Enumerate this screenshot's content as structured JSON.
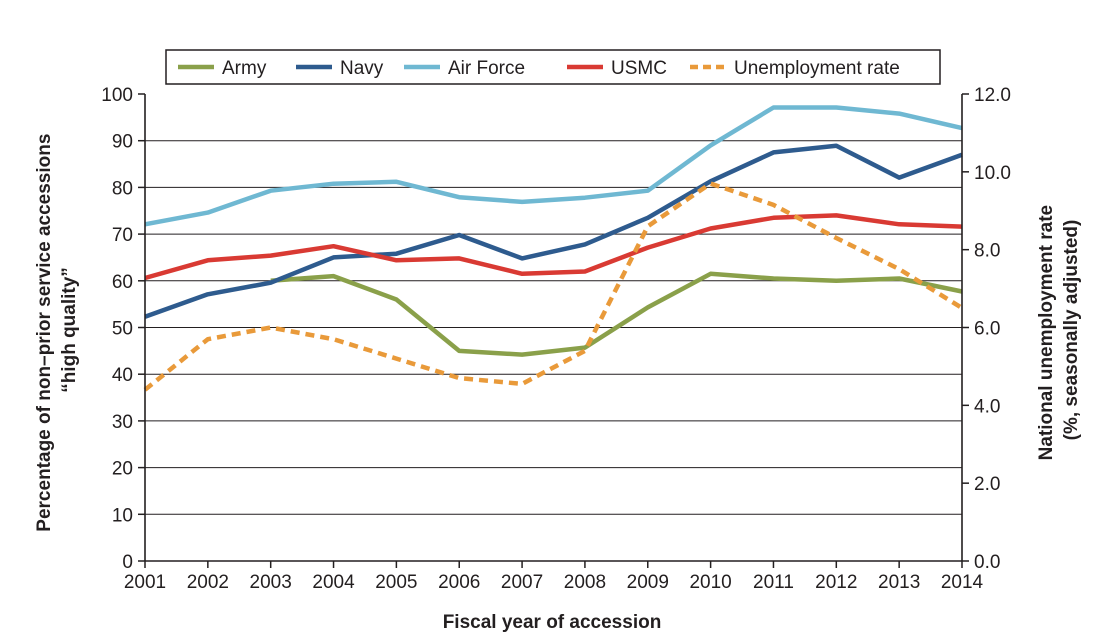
{
  "chart_data": {
    "type": "line",
    "xlabel": "Fiscal year of accession",
    "ylabel_lines": [
      "Percentage of non–prior service accessions",
      "“high quality”"
    ],
    "y2label_lines": [
      "National unemployment rate",
      "(%, seasonally adjusted)"
    ],
    "x": [
      "2001",
      "2002",
      "2003",
      "2004",
      "2005",
      "2006",
      "2007",
      "2008",
      "2009",
      "2010",
      "2011",
      "2012",
      "2013",
      "2014"
    ],
    "ylim": [
      0,
      100
    ],
    "yticks": [
      "0",
      "10",
      "20",
      "30",
      "40",
      "50",
      "60",
      "70",
      "80",
      "90",
      "100"
    ],
    "y2lim": [
      0,
      12
    ],
    "y2ticks": [
      "0.0",
      "2.0",
      "4.0",
      "6.0",
      "8.0",
      "10.0",
      "12.0"
    ],
    "grid": "horizontal",
    "legend_position": "top",
    "series": [
      {
        "name": "Army",
        "axis": "left",
        "color": "#8aa04a",
        "dash": "solid",
        "values": [
          null,
          null,
          60.0,
          61.0,
          56.0,
          45.0,
          44.2,
          45.7,
          54.3,
          61.5,
          60.5,
          60.0,
          60.5,
          57.7
        ]
      },
      {
        "name": "Navy",
        "axis": "left",
        "color": "#2e5b8e",
        "dash": "solid",
        "values": [
          52.3,
          57.1,
          59.6,
          65.0,
          65.8,
          69.8,
          64.8,
          67.8,
          73.5,
          81.3,
          87.5,
          88.9,
          82.1,
          87.0
        ]
      },
      {
        "name": "Air Force",
        "axis": "left",
        "color": "#6fb8d2",
        "dash": "solid",
        "values": [
          72.1,
          74.6,
          79.3,
          80.8,
          81.2,
          77.9,
          76.9,
          77.8,
          79.3,
          89.0,
          97.1,
          97.1,
          95.8,
          92.7
        ]
      },
      {
        "name": "USMC",
        "axis": "left",
        "color": "#d93a33",
        "dash": "solid",
        "values": [
          60.6,
          64.4,
          65.4,
          67.4,
          64.4,
          64.8,
          61.5,
          62.0,
          67.1,
          71.2,
          73.5,
          74.0,
          72.1,
          71.6
        ]
      },
      {
        "name": "Unemployment rate",
        "axis": "right",
        "color": "#e99a3a",
        "dash": "dashed",
        "values": [
          4.4,
          5.7,
          6.0,
          5.7,
          5.2,
          4.7,
          4.55,
          5.4,
          8.6,
          9.7,
          9.15,
          8.3,
          7.5,
          6.5
        ]
      }
    ]
  }
}
